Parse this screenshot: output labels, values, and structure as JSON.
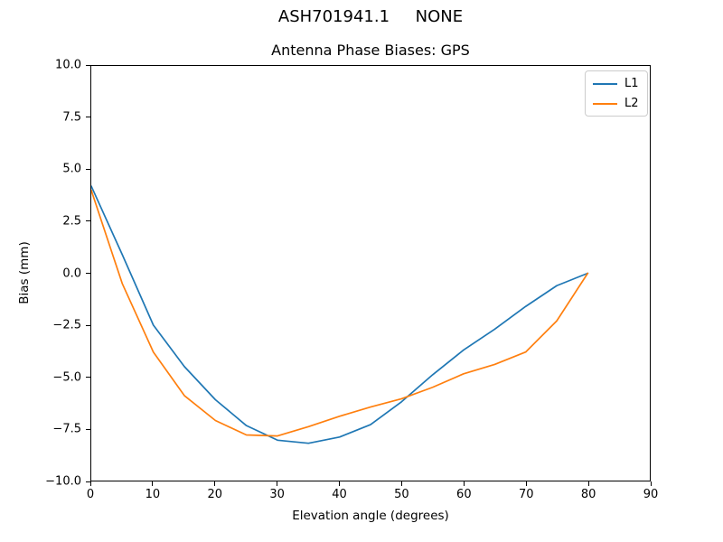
{
  "figure": {
    "suptitle": "ASH701941.1     NONE",
    "background": "#ffffff"
  },
  "chart_data": {
    "type": "line",
    "title": "Antenna Phase Biases: GPS",
    "xlabel": "Elevation angle (degrees)",
    "ylabel": "Bias (mm)",
    "xlim": [
      0,
      90
    ],
    "ylim": [
      -10,
      10
    ],
    "grid": false,
    "legend_position": "upper right",
    "xticks": [
      0,
      10,
      20,
      30,
      40,
      50,
      60,
      70,
      80,
      90
    ],
    "xtick_labels": [
      "0",
      "10",
      "20",
      "30",
      "40",
      "50",
      "60",
      "70",
      "80",
      "90"
    ],
    "yticks": [
      10,
      7.5,
      5,
      2.5,
      0,
      -2.5,
      -5,
      -7.5,
      -10
    ],
    "ytick_labels": [
      "10.0",
      "7.5",
      "5.0",
      "2.5",
      "0.0",
      "−2.5",
      "−5.0",
      "−7.5",
      "−10.0"
    ],
    "x": [
      0,
      5,
      10,
      15,
      20,
      25,
      30,
      35,
      40,
      45,
      50,
      55,
      60,
      65,
      70,
      75,
      80
    ],
    "series": [
      {
        "name": "L1",
        "color": "#1f77b4",
        "values": [
          4.2,
          0.9,
          -2.5,
          -4.5,
          -6.1,
          -7.35,
          -8.05,
          -8.2,
          -7.9,
          -7.3,
          -6.2,
          -4.9,
          -3.7,
          -2.7,
          -1.6,
          -0.6,
          0.0
        ]
      },
      {
        "name": "L2",
        "color": "#ff7f0e",
        "values": [
          4.0,
          -0.5,
          -3.8,
          -5.9,
          -7.1,
          -7.8,
          -7.85,
          -7.4,
          -6.9,
          -6.45,
          -6.05,
          -5.5,
          -4.85,
          -4.4,
          -3.8,
          -2.3,
          0.0
        ]
      }
    ]
  }
}
